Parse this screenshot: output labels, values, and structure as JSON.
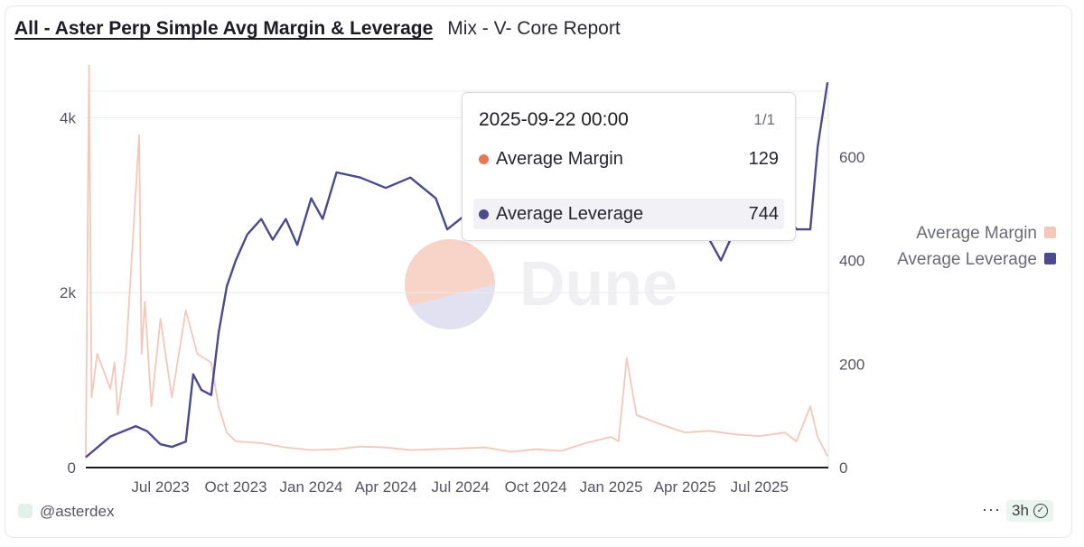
{
  "header": {
    "title": "All - Aster Perp Simple Avg Margin & Leverage",
    "subtitle": "Mix - V- Core Report"
  },
  "watermark": "Dune",
  "tooltip": {
    "date": "2025-09-22 00:00",
    "page": "1/1",
    "rows": [
      {
        "name": "Average Margin",
        "value": "129",
        "color": "#e9765b"
      },
      {
        "name": "Average Leverage",
        "value": "744",
        "color": "#4b4a8e"
      }
    ]
  },
  "footer": {
    "user": "@asterdex",
    "more": "···",
    "refresh": "3h"
  },
  "chart_data": {
    "type": "line",
    "x_range": [
      "2023-04-01",
      "2025-09-23"
    ],
    "x_ticks": [
      "Jul 2023",
      "Oct 2023",
      "Jan 2024",
      "Apr 2024",
      "Jul 2024",
      "Oct 2024",
      "Jan 2025",
      "Apr 2025",
      "Jul 2025"
    ],
    "y_left": {
      "ticks": [
        "0",
        "2k",
        "4k"
      ],
      "range": [
        0,
        4500
      ]
    },
    "y_right": {
      "ticks": [
        "0",
        "200",
        "400",
        "600"
      ],
      "range": [
        0,
        760
      ]
    },
    "grid": true,
    "legend_position": "right",
    "series": [
      {
        "name": "Average Margin",
        "axis": "left",
        "color": "#f4c7bb",
        "x": [
          "2023-04-01",
          "2023-04-05",
          "2023-04-08",
          "2023-04-15",
          "2023-05-01",
          "2023-05-06",
          "2023-05-10",
          "2023-05-20",
          "2023-06-05",
          "2023-06-08",
          "2023-06-12",
          "2023-06-20",
          "2023-07-01",
          "2023-07-15",
          "2023-08-01",
          "2023-08-15",
          "2023-09-01",
          "2023-09-10",
          "2023-09-20",
          "2023-10-01",
          "2023-11-01",
          "2023-12-01",
          "2024-01-01",
          "2024-02-01",
          "2024-03-01",
          "2024-04-01",
          "2024-05-01",
          "2024-06-01",
          "2024-07-01",
          "2024-08-01",
          "2024-09-01",
          "2024-10-01",
          "2024-11-01",
          "2024-12-01",
          "2025-01-01",
          "2025-01-10",
          "2025-01-20",
          "2025-02-01",
          "2025-03-01",
          "2025-04-01",
          "2025-05-01",
          "2025-06-01",
          "2025-07-01",
          "2025-08-01",
          "2025-08-15",
          "2025-09-01",
          "2025-09-10",
          "2025-09-22"
        ],
        "values": [
          100,
          4600,
          800,
          1300,
          900,
          1200,
          600,
          1300,
          3800,
          1300,
          1900,
          700,
          1700,
          800,
          1800,
          1300,
          1200,
          700,
          400,
          300,
          280,
          230,
          200,
          210,
          240,
          230,
          200,
          210,
          220,
          230,
          180,
          210,
          190,
          280,
          350,
          300,
          1250,
          600,
          500,
          400,
          420,
          380,
          360,
          400,
          300,
          700,
          350,
          129
        ]
      },
      {
        "name": "Average Leverage",
        "axis": "right",
        "color": "#4b4a8e",
        "x": [
          "2023-04-01",
          "2023-05-01",
          "2023-06-01",
          "2023-06-15",
          "2023-07-01",
          "2023-07-15",
          "2023-08-01",
          "2023-08-10",
          "2023-08-20",
          "2023-09-01",
          "2023-09-10",
          "2023-09-20",
          "2023-10-01",
          "2023-10-15",
          "2023-11-01",
          "2023-11-15",
          "2023-12-01",
          "2023-12-15",
          "2024-01-01",
          "2024-01-15",
          "2024-02-01",
          "2024-03-01",
          "2024-04-01",
          "2024-05-01",
          "2024-06-01",
          "2024-06-15",
          "2024-07-01",
          "2024-08-01",
          "2024-09-01",
          "2024-10-01",
          "2024-11-01",
          "2024-12-01",
          "2025-01-01",
          "2025-02-01",
          "2025-03-01",
          "2025-04-01",
          "2025-04-15",
          "2025-05-01",
          "2025-05-15",
          "2025-06-01",
          "2025-07-01",
          "2025-07-15",
          "2025-08-01",
          "2025-08-15",
          "2025-09-01",
          "2025-09-10",
          "2025-09-22"
        ],
        "values": [
          20,
          60,
          80,
          70,
          45,
          40,
          50,
          180,
          150,
          140,
          260,
          350,
          400,
          450,
          480,
          440,
          480,
          430,
          520,
          480,
          570,
          560,
          540,
          560,
          520,
          460,
          480,
          520,
          560,
          590,
          560,
          540,
          520,
          500,
          480,
          520,
          470,
          440,
          400,
          460,
          480,
          440,
          500,
          460,
          460,
          620,
          744
        ]
      }
    ]
  }
}
